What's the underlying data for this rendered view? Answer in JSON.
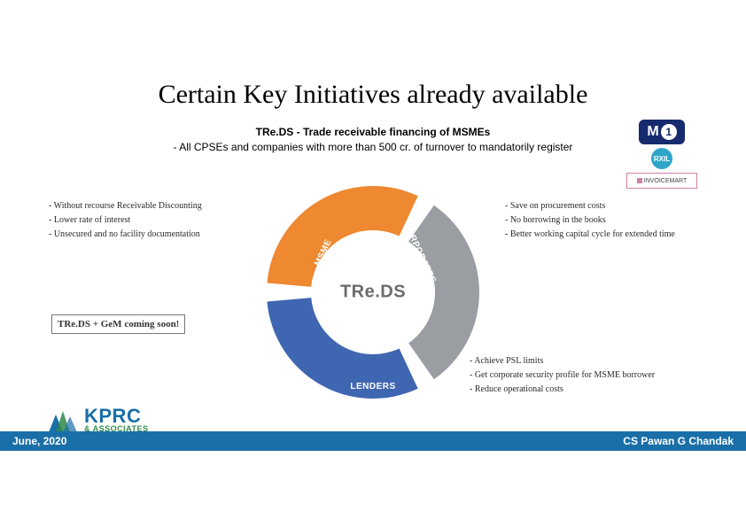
{
  "title": "Certain Key Initiatives already available",
  "subtitle_bold": "TRe.DS - Trade receivable financing of MSMEs",
  "subtitle_text": "- All CPSEs and companies with more than 500 cr. of turnover to mandatorily register",
  "diagram": {
    "type": "donut-3seg",
    "center_label": "TRe.DS",
    "segments": [
      {
        "key": "msme",
        "label": "MSME",
        "color": "#3f66b0",
        "start_deg": 150,
        "end_deg": 270
      },
      {
        "key": "corporates",
        "label": "CORPORATES",
        "color": "#ee8831",
        "start_deg": 270,
        "end_deg": 30
      },
      {
        "key": "lenders",
        "label": "LENDERS",
        "color": "#9a9ea3",
        "start_deg": 30,
        "end_deg": 150
      }
    ],
    "outer_radius": 120,
    "inner_radius": 70,
    "gap_deg": 10,
    "center_bg": "#ffffff",
    "center_text_color": "#6b6b6b"
  },
  "bullets_left": [
    "- Without recourse Receivable Discounting",
    "- Lower rate of interest",
    "- Unsecured and no facility documentation"
  ],
  "bullets_right": [
    "- Save on procurement costs",
    "- No borrowing in the books",
    "- Better working capital cycle for extended time"
  ],
  "bullets_bottom": [
    "- Achieve PSL limits",
    "- Get corporate security profile for MSME borrower",
    "- Reduce operational costs"
  ],
  "coming_soon": "TRe.DS + GeM coming soon!",
  "logo": {
    "main": "KPRC",
    "sub": "& ASSOCIATES",
    "color_main": "#1a6fa8",
    "color_sub": "#2f8a4a",
    "tri_color": "#1a6fa8"
  },
  "footer": {
    "left": "June, 2020",
    "right": "CS Pawan G Chandak",
    "bg": "#1a6fa8"
  },
  "right_logos": {
    "m1": "M",
    "m1_one": "1",
    "rxil": "RXIL",
    "invoice": "INVOICEMART"
  }
}
